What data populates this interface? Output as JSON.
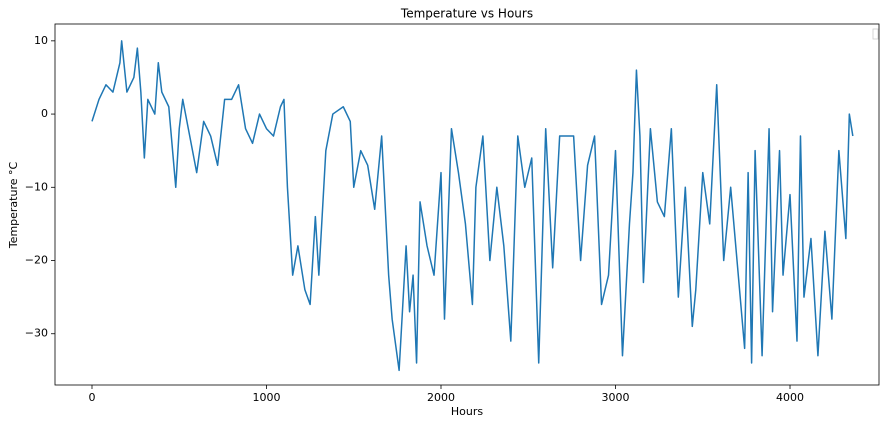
{
  "chart_data": {
    "type": "line",
    "title": "Temperature vs Hours",
    "xlabel": "Hours",
    "ylabel": "Temperature °C",
    "x": [
      0,
      40,
      80,
      120,
      160,
      170,
      200,
      240,
      260,
      280,
      300,
      320,
      360,
      380,
      400,
      440,
      480,
      500,
      520,
      560,
      600,
      640,
      680,
      720,
      760,
      800,
      840,
      880,
      920,
      960,
      1000,
      1040,
      1080,
      1100,
      1120,
      1150,
      1180,
      1220,
      1250,
      1280,
      1300,
      1340,
      1380,
      1440,
      1480,
      1500,
      1540,
      1580,
      1620,
      1660,
      1700,
      1720,
      1760,
      1800,
      1820,
      1840,
      1860,
      1880,
      1920,
      1960,
      2000,
      2020,
      2060,
      2100,
      2140,
      2180,
      2200,
      2240,
      2280,
      2320,
      2360,
      2400,
      2440,
      2480,
      2520,
      2560,
      2600,
      2640,
      2680,
      2720,
      2760,
      2800,
      2840,
      2880,
      2920,
      2960,
      3000,
      3040,
      3080,
      3100,
      3120,
      3140,
      3160,
      3200,
      3240,
      3280,
      3320,
      3360,
      3400,
      3440,
      3460,
      3500,
      3540,
      3580,
      3620,
      3660,
      3700,
      3740,
      3760,
      3780,
      3800,
      3840,
      3880,
      3900,
      3940,
      3960,
      4000,
      4040,
      4060,
      4080,
      4120,
      4160,
      4200,
      4240,
      4280,
      4320,
      4340,
      4360
    ],
    "series": [
      {
        "name": "Temperature",
        "color": "#1f77b4",
        "values": [
          -1,
          2,
          4,
          3,
          7,
          10,
          3,
          5,
          9,
          3,
          -6,
          2,
          0,
          7,
          3,
          1,
          -10,
          -2,
          2,
          -3,
          -8,
          -1,
          -3,
          -7,
          2,
          2,
          4,
          -2,
          -4,
          0,
          -2,
          -3,
          1,
          2,
          -10,
          -22,
          -18,
          -24,
          -26,
          -14,
          -22,
          -5,
          0,
          1,
          -1,
          -10,
          -5,
          -7,
          -13,
          -3,
          -22,
          -28,
          -35,
          -18,
          -27,
          -22,
          -34,
          -12,
          -18,
          -22,
          -8,
          -28,
          -2,
          -8,
          -15,
          -26,
          -10,
          -3,
          -20,
          -10,
          -18,
          -31,
          -3,
          -10,
          -6,
          -34,
          -2,
          -21,
          -3,
          -3,
          -3,
          -20,
          -7,
          -3,
          -26,
          -22,
          -5,
          -33,
          -15,
          -8,
          6,
          -3,
          -23,
          -2,
          -12,
          -14,
          -2,
          -25,
          -10,
          -29,
          -24,
          -8,
          -15,
          4,
          -20,
          -10,
          -21,
          -32,
          -8,
          -34,
          -5,
          -33,
          -2,
          -27,
          -5,
          -22,
          -11,
          -31,
          -3,
          -25,
          -17,
          -33,
          -16,
          -28,
          -5,
          -17,
          0,
          -3
        ]
      }
    ],
    "xlim": [
      -212,
      4510
    ],
    "ylim": [
      -37,
      12.3
    ],
    "xticks": [
      0,
      1000,
      2000,
      3000,
      4000
    ],
    "yticks": [
      {
        "value": -30,
        "label": "−30"
      },
      {
        "value": -20,
        "label": "−20"
      },
      {
        "value": -10,
        "label": "−10"
      },
      0,
      10
    ]
  }
}
